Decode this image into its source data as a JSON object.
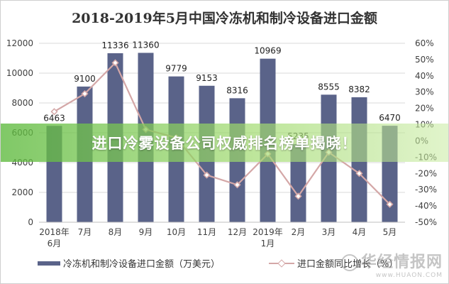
{
  "banner": {
    "text": "进口冷雾设备公司权威排名榜单揭晓！"
  },
  "watermark": {
    "name": "华经情报网",
    "url": "www.HUAON.COM"
  },
  "colors": {
    "bar": "#5a6389",
    "line": "#d4a7a7",
    "grid": "#d9d9d9",
    "banner": "#6cc04a"
  },
  "chart_data": {
    "type": "bar",
    "title": "2018-2019年5月中国冷冻机和制冷设备进口金额",
    "categories": [
      [
        "2018年",
        "6月"
      ],
      [
        "7月"
      ],
      [
        "8月"
      ],
      [
        "9月"
      ],
      [
        "10月"
      ],
      [
        "11月"
      ],
      [
        "12月"
      ],
      [
        "2019年",
        "1月"
      ],
      [
        "2月"
      ],
      [
        "3月"
      ],
      [
        "4月"
      ],
      [
        "5月"
      ]
    ],
    "series": [
      {
        "name": "冷冻机和制冷设备进口金额（万美元）",
        "type": "bar",
        "axis": "left",
        "values": [
          6463,
          9100,
          11336,
          11360,
          9779,
          9153,
          8316,
          10969,
          5235,
          8555,
          8382,
          6470
        ],
        "labels": [
          "6463",
          "9100",
          "11336",
          "11360",
          "9779",
          "9153",
          "8316",
          "10969",
          "5235",
          "8555",
          "8382",
          "6470"
        ]
      },
      {
        "name": "进口金额同比增长（%）",
        "type": "line",
        "axis": "right",
        "values": [
          18,
          29,
          48,
          7,
          2,
          -21,
          -27,
          -8,
          -34,
          -7,
          -20,
          -39
        ]
      }
    ],
    "y_left": {
      "min": 0,
      "max": 12000,
      "ticks": [
        "0",
        "2000",
        "4000",
        "6000",
        "8000",
        "10000",
        "12000"
      ]
    },
    "y_right": {
      "min": -50,
      "max": 60,
      "ticks": [
        "-50%",
        "-40%",
        "-30%",
        "-20%",
        "-10%",
        "0%",
        "10%",
        "20%",
        "30%",
        "40%",
        "50%",
        "60%"
      ]
    },
    "grid": true,
    "legend": "bottom"
  }
}
